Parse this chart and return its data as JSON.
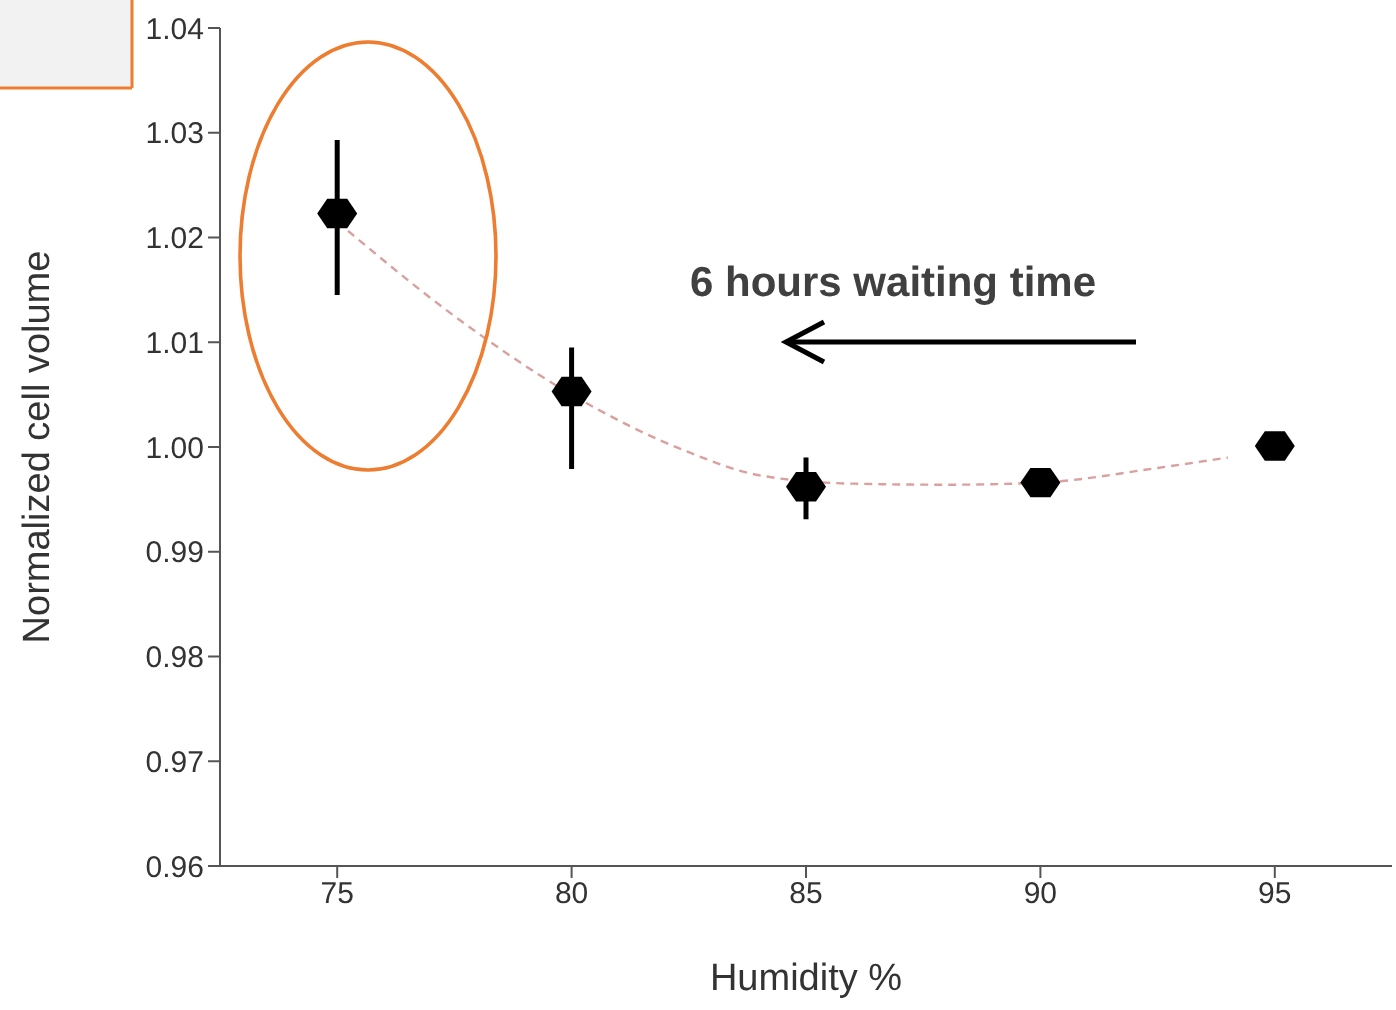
{
  "chart_data": {
    "type": "scatter",
    "xlabel": "Humidity %",
    "ylabel": "Normalized cell volume",
    "xlim": [
      72.5,
      97.5
    ],
    "xticks": [
      75,
      80,
      85,
      90,
      95
    ],
    "ylim": [
      0.96,
      1.04
    ],
    "yticks": [
      0.96,
      0.97,
      0.98,
      0.99,
      {
        "value": 1.0,
        "label": "1.00"
      },
      1.01,
      1.02,
      1.03,
      1.04
    ],
    "grid": false,
    "annotations": [
      "6 hours waiting time"
    ],
    "series": [
      {
        "type": "scatter",
        "color": "#000000",
        "x": [
          75,
          80,
          85,
          90,
          95
        ],
        "values": [
          1.0223,
          1.0053,
          0.9962,
          0.9966,
          1.0001
        ],
        "errors": [
          [
            1.0145,
            1.0293
          ],
          [
            0.9979,
            1.0095
          ],
          [
            0.9931,
            0.999
          ],
          null,
          null
        ]
      },
      {
        "type": "line",
        "color": "#d9a0a0",
        "line_style": "dashed",
        "x": [
          75,
          77.5,
          80,
          82.5,
          84,
          86,
          88,
          90,
          92.5,
          94
        ],
        "values": [
          1.0215,
          1.0125,
          1.005,
          0.9995,
          0.9973,
          0.9965,
          0.9964,
          0.9966,
          0.998,
          0.999
        ]
      }
    ]
  }
}
